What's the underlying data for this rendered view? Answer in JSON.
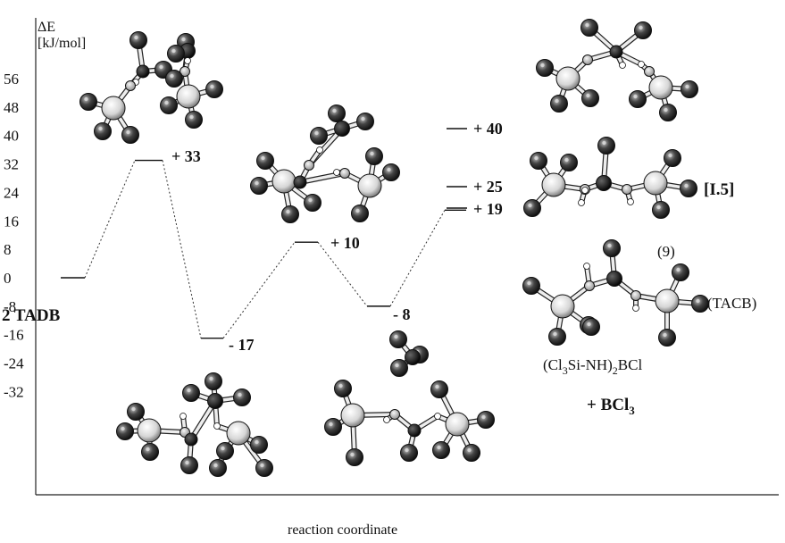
{
  "y_axis": {
    "title_line1": "ΔE",
    "title_line2": "[kJ/mol]",
    "ticks": [
      "56",
      "48",
      "40",
      "32",
      "24",
      "16",
      "8",
      "0",
      "-8",
      "-16",
      "-24",
      "-32"
    ]
  },
  "x_axis": {
    "title": "reaction coordinate"
  },
  "profile": {
    "levels": [
      0,
      33,
      -17,
      10,
      -8,
      19
    ],
    "labels": {
      "start": "2 TADB",
      "ts1": "+ 33",
      "int1": "- 17",
      "ts2": "+ 10",
      "int2": "- 8",
      "p40": "+ 40",
      "p25": "+ 25",
      "p19": "+ 19"
    }
  },
  "annotations": {
    "ref": "[I.5]",
    "nine": "(9)",
    "tacb": "(TACB)",
    "formula_a": "(Cl",
    "formula_sub1": "3",
    "formula_b": "Si-NH)",
    "formula_sub2": "2",
    "formula_c": "BCl",
    "plus_a": "+ BCl",
    "plus_sub": "3"
  }
}
